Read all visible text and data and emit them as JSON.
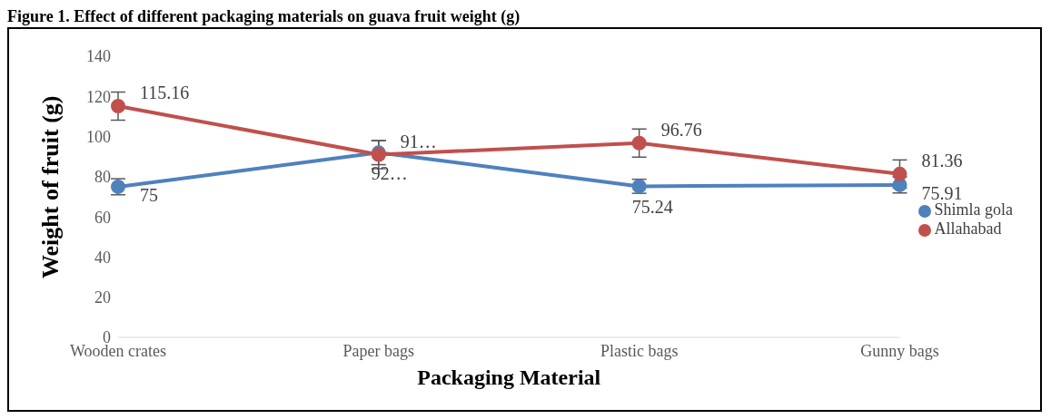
{
  "chart_data": {
    "type": "line",
    "title": "Figure 1. Effect of different packaging materials on guava fruit weight (g)",
    "xlabel": "Packaging Material",
    "ylabel": "Weight of fruit (g)",
    "categories": [
      "Wooden crates",
      "Paper bags",
      "Plastic bags",
      "Gunny bags"
    ],
    "series": [
      {
        "name": "Shimla gola",
        "color": "#4f81bd",
        "values": [
          75,
          92,
          75.24,
          75.91
        ],
        "errors": [
          4,
          6,
          3.5,
          4
        ],
        "value_labels": [
          "75",
          "92…",
          "75.24",
          "75.91"
        ]
      },
      {
        "name": "Allahabad",
        "color": "#c0504d",
        "values": [
          115.16,
          91,
          96.76,
          81.36
        ],
        "errors": [
          7,
          7,
          7,
          7
        ],
        "value_labels": [
          "115.16",
          "91…",
          "96.76",
          "81.36"
        ]
      }
    ],
    "ylim": [
      0,
      140
    ],
    "yticks": [
      0,
      20,
      40,
      60,
      80,
      100,
      120,
      140
    ],
    "grid": false,
    "legend": "right",
    "marker": "circle",
    "line_style": "solid"
  }
}
